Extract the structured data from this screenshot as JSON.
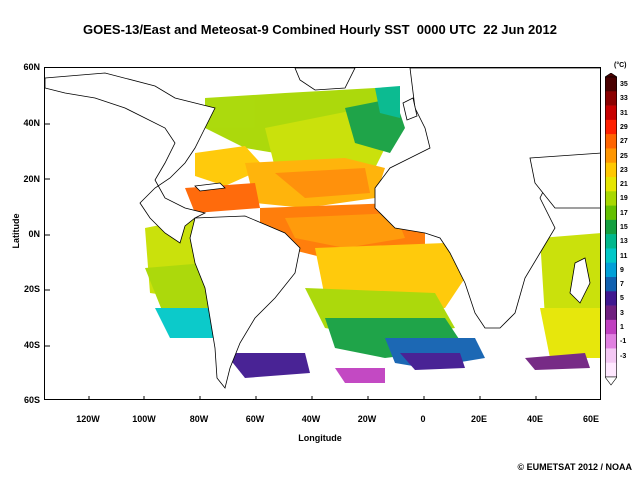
{
  "title": "GOES-13/East and Meteosat-9 Combined Hourly SST  0000 UTC  22 Jun 2012",
  "axes": {
    "xlabel": "Longitude",
    "ylabel": "Latitude",
    "lat_ticks": [
      "60N",
      "40N",
      "20N",
      "0N",
      "20S",
      "40S",
      "60S"
    ],
    "lon_ticks": [
      "120W",
      "100W",
      "80W",
      "60W",
      "40W",
      "20W",
      "0",
      "20E",
      "40E",
      "60E"
    ]
  },
  "colorbar": {
    "unit": "(°C)",
    "labels": [
      "35",
      "33",
      "31",
      "29",
      "27",
      "25",
      "23",
      "21",
      "19",
      "17",
      "15",
      "13",
      "11",
      "9",
      "7",
      "5",
      "3",
      "1",
      "-1",
      "-3"
    ],
    "colors": [
      "#4a0000",
      "#8b0000",
      "#c80000",
      "#ff2000",
      "#ff6400",
      "#ff9600",
      "#ffc800",
      "#e6e600",
      "#a8d800",
      "#64c000",
      "#14a040",
      "#00b88c",
      "#00c8c8",
      "#00a0d8",
      "#1060b0",
      "#401890",
      "#702080",
      "#c040c0",
      "#e080e0",
      "#f4c8f4",
      "#ffe8ff"
    ]
  },
  "credit": "© EUMETSAT 2012 / NOAA"
}
